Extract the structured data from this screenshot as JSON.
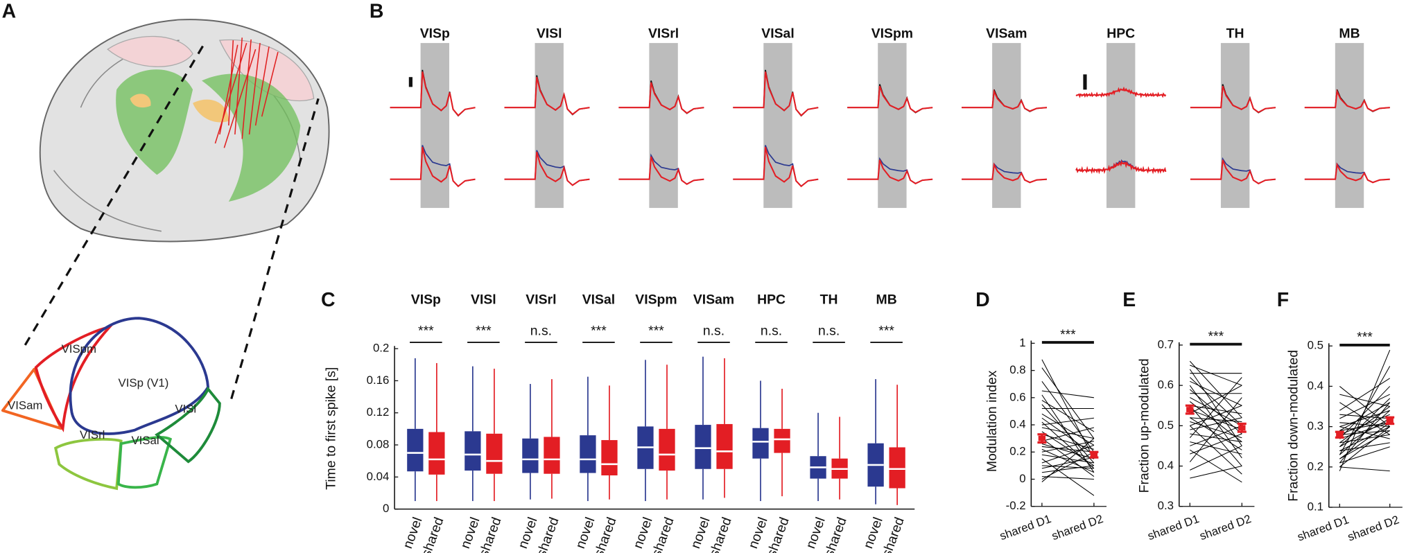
{
  "panel_a": {
    "label": "A",
    "areas": [
      "VISp (V1)",
      "VISpm",
      "VISam",
      "VISrl",
      "VISal",
      "VISl"
    ]
  },
  "panel_b": {
    "label": "B",
    "areas": [
      "VISp",
      "VISl",
      "VISrl",
      "VISal",
      "VISpm",
      "VISam",
      "HPC",
      "TH",
      "MB"
    ]
  },
  "chart_data": [
    {
      "type": "box",
      "label": "C",
      "ylabel": "Time to first spike [s]",
      "categories": [
        "VISp",
        "VISl",
        "VISrl",
        "VISal",
        "VISpm",
        "VISam",
        "HPC",
        "TH",
        "MB"
      ],
      "significance": [
        "***",
        "***",
        "n.s.",
        "***",
        "***",
        "n.s.",
        "n.s.",
        "n.s.",
        "***"
      ],
      "series": [
        {
          "name": "novel",
          "color": "#2b3990",
          "values": [
            [
              0.01,
              0.047,
              0.07,
              0.1,
              0.188
            ],
            [
              0.01,
              0.048,
              0.068,
              0.097,
              0.178
            ],
            [
              0.012,
              0.045,
              0.062,
              0.088,
              0.156
            ],
            [
              0.01,
              0.045,
              0.062,
              0.092,
              0.165
            ],
            [
              0.01,
              0.05,
              0.077,
              0.103,
              0.186
            ],
            [
              0.012,
              0.05,
              0.076,
              0.105,
              0.19
            ],
            [
              0.01,
              0.063,
              0.084,
              0.101,
              0.16
            ],
            [
              0.01,
              0.038,
              0.052,
              0.066,
              0.12
            ],
            [
              0.006,
              0.028,
              0.055,
              0.082,
              0.162
            ]
          ]
        },
        {
          "name": "shared",
          "color": "#e31e24",
          "values": [
            [
              0.01,
              0.043,
              0.062,
              0.096,
              0.182
            ],
            [
              0.01,
              0.044,
              0.06,
              0.094,
              0.175
            ],
            [
              0.013,
              0.044,
              0.062,
              0.09,
              0.162
            ],
            [
              0.012,
              0.042,
              0.056,
              0.086,
              0.154
            ],
            [
              0.012,
              0.048,
              0.068,
              0.1,
              0.18
            ],
            [
              0.014,
              0.05,
              0.072,
              0.106,
              0.188
            ],
            [
              0.016,
              0.07,
              0.087,
              0.1,
              0.15
            ],
            [
              0.012,
              0.038,
              0.05,
              0.063,
              0.115
            ],
            [
              0.005,
              0.026,
              0.05,
              0.077,
              0.155
            ]
          ]
        }
      ],
      "ylim": [
        0,
        0.2
      ],
      "yticks": [
        0,
        0.04,
        0.08,
        0.12,
        0.16,
        0.2
      ]
    },
    {
      "type": "paired",
      "label": "D",
      "ylabel": "Modulation index",
      "categories": [
        "shared D1",
        "shared D2"
      ],
      "significance": "***",
      "color": "#000000",
      "mean_color": "#e31e24",
      "pairs": [
        [
          0.88,
          0.15
        ],
        [
          0.82,
          0.3
        ],
        [
          0.72,
          0.2
        ],
        [
          0.65,
          0.6
        ],
        [
          0.62,
          0.05
        ],
        [
          0.58,
          0.35
        ],
        [
          0.55,
          0.12
        ],
        [
          0.52,
          0.52
        ],
        [
          0.48,
          0.25
        ],
        [
          0.45,
          0.18
        ],
        [
          0.42,
          0.08
        ],
        [
          0.4,
          0.45
        ],
        [
          0.38,
          0.3
        ],
        [
          0.35,
          0.1
        ],
        [
          0.33,
          0.22
        ],
        [
          0.3,
          0.02
        ],
        [
          0.28,
          0.38
        ],
        [
          0.26,
          0.15
        ],
        [
          0.24,
          0.2
        ],
        [
          0.22,
          0.05
        ],
        [
          0.2,
          0.28
        ],
        [
          0.18,
          0.12
        ],
        [
          0.15,
          -0.12
        ],
        [
          0.12,
          0.25
        ],
        [
          0.1,
          0.08
        ],
        [
          0.08,
          0.16
        ],
        [
          0.05,
          0.1
        ],
        [
          0.02,
          0.0
        ],
        [
          0.0,
          0.2
        ],
        [
          -0.02,
          0.3
        ]
      ],
      "means": [
        0.3,
        0.18
      ],
      "errors": [
        0.03,
        0.02
      ],
      "ylim": [
        -0.2,
        1
      ],
      "yticks": [
        -0.2,
        0,
        0.2,
        0.4,
        0.6,
        0.8,
        1
      ]
    },
    {
      "type": "paired",
      "label": "E",
      "ylabel": "Fraction up-modulated",
      "categories": [
        "shared D1",
        "shared D2"
      ],
      "significance": "***",
      "color": "#000000",
      "mean_color": "#e31e24",
      "pairs": [
        [
          0.66,
          0.52
        ],
        [
          0.65,
          0.6
        ],
        [
          0.64,
          0.45
        ],
        [
          0.63,
          0.63
        ],
        [
          0.62,
          0.5
        ],
        [
          0.61,
          0.55
        ],
        [
          0.6,
          0.42
        ],
        [
          0.59,
          0.48
        ],
        [
          0.58,
          0.58
        ],
        [
          0.57,
          0.5
        ],
        [
          0.56,
          0.46
        ],
        [
          0.55,
          0.53
        ],
        [
          0.55,
          0.4
        ],
        [
          0.54,
          0.49
        ],
        [
          0.53,
          0.6
        ],
        [
          0.52,
          0.44
        ],
        [
          0.52,
          0.51
        ],
        [
          0.51,
          0.47
        ],
        [
          0.5,
          0.55
        ],
        [
          0.5,
          0.38
        ],
        [
          0.49,
          0.52
        ],
        [
          0.48,
          0.46
        ],
        [
          0.47,
          0.62
        ],
        [
          0.46,
          0.43
        ],
        [
          0.45,
          0.5
        ],
        [
          0.44,
          0.36
        ],
        [
          0.43,
          0.48
        ],
        [
          0.41,
          0.57
        ],
        [
          0.39,
          0.45
        ],
        [
          0.37,
          0.4
        ]
      ],
      "means": [
        0.54,
        0.495
      ],
      "errors": [
        0.01,
        0.01
      ],
      "ylim": [
        0.3,
        0.7
      ],
      "yticks": [
        0.3,
        0.4,
        0.5,
        0.6,
        0.7
      ]
    },
    {
      "type": "paired",
      "label": "F",
      "ylabel": "Fraction down-modulated",
      "categories": [
        "shared D1",
        "shared D2"
      ],
      "significance": "***",
      "color": "#000000",
      "mean_color": "#e31e24",
      "pairs": [
        [
          0.4,
          0.3
        ],
        [
          0.38,
          0.35
        ],
        [
          0.36,
          0.28
        ],
        [
          0.34,
          0.42
        ],
        [
          0.33,
          0.32
        ],
        [
          0.32,
          0.38
        ],
        [
          0.31,
          0.3
        ],
        [
          0.3,
          0.34
        ],
        [
          0.3,
          0.27
        ],
        [
          0.29,
          0.36
        ],
        [
          0.29,
          0.31
        ],
        [
          0.28,
          0.33
        ],
        [
          0.28,
          0.29
        ],
        [
          0.27,
          0.4
        ],
        [
          0.27,
          0.31
        ],
        [
          0.26,
          0.35
        ],
        [
          0.26,
          0.28
        ],
        [
          0.25,
          0.32
        ],
        [
          0.25,
          0.37
        ],
        [
          0.24,
          0.3
        ],
        [
          0.24,
          0.26
        ],
        [
          0.23,
          0.34
        ],
        [
          0.23,
          0.45
        ],
        [
          0.22,
          0.29
        ],
        [
          0.22,
          0.31
        ],
        [
          0.21,
          0.25
        ],
        [
          0.21,
          0.36
        ],
        [
          0.2,
          0.3
        ],
        [
          0.2,
          0.19
        ],
        [
          0.19,
          0.49
        ]
      ],
      "means": [
        0.28,
        0.315
      ],
      "errors": [
        0.007,
        0.008
      ],
      "ylim": [
        0.1,
        0.5
      ],
      "yticks": [
        0.1,
        0.2,
        0.3,
        0.4,
        0.5
      ]
    }
  ]
}
